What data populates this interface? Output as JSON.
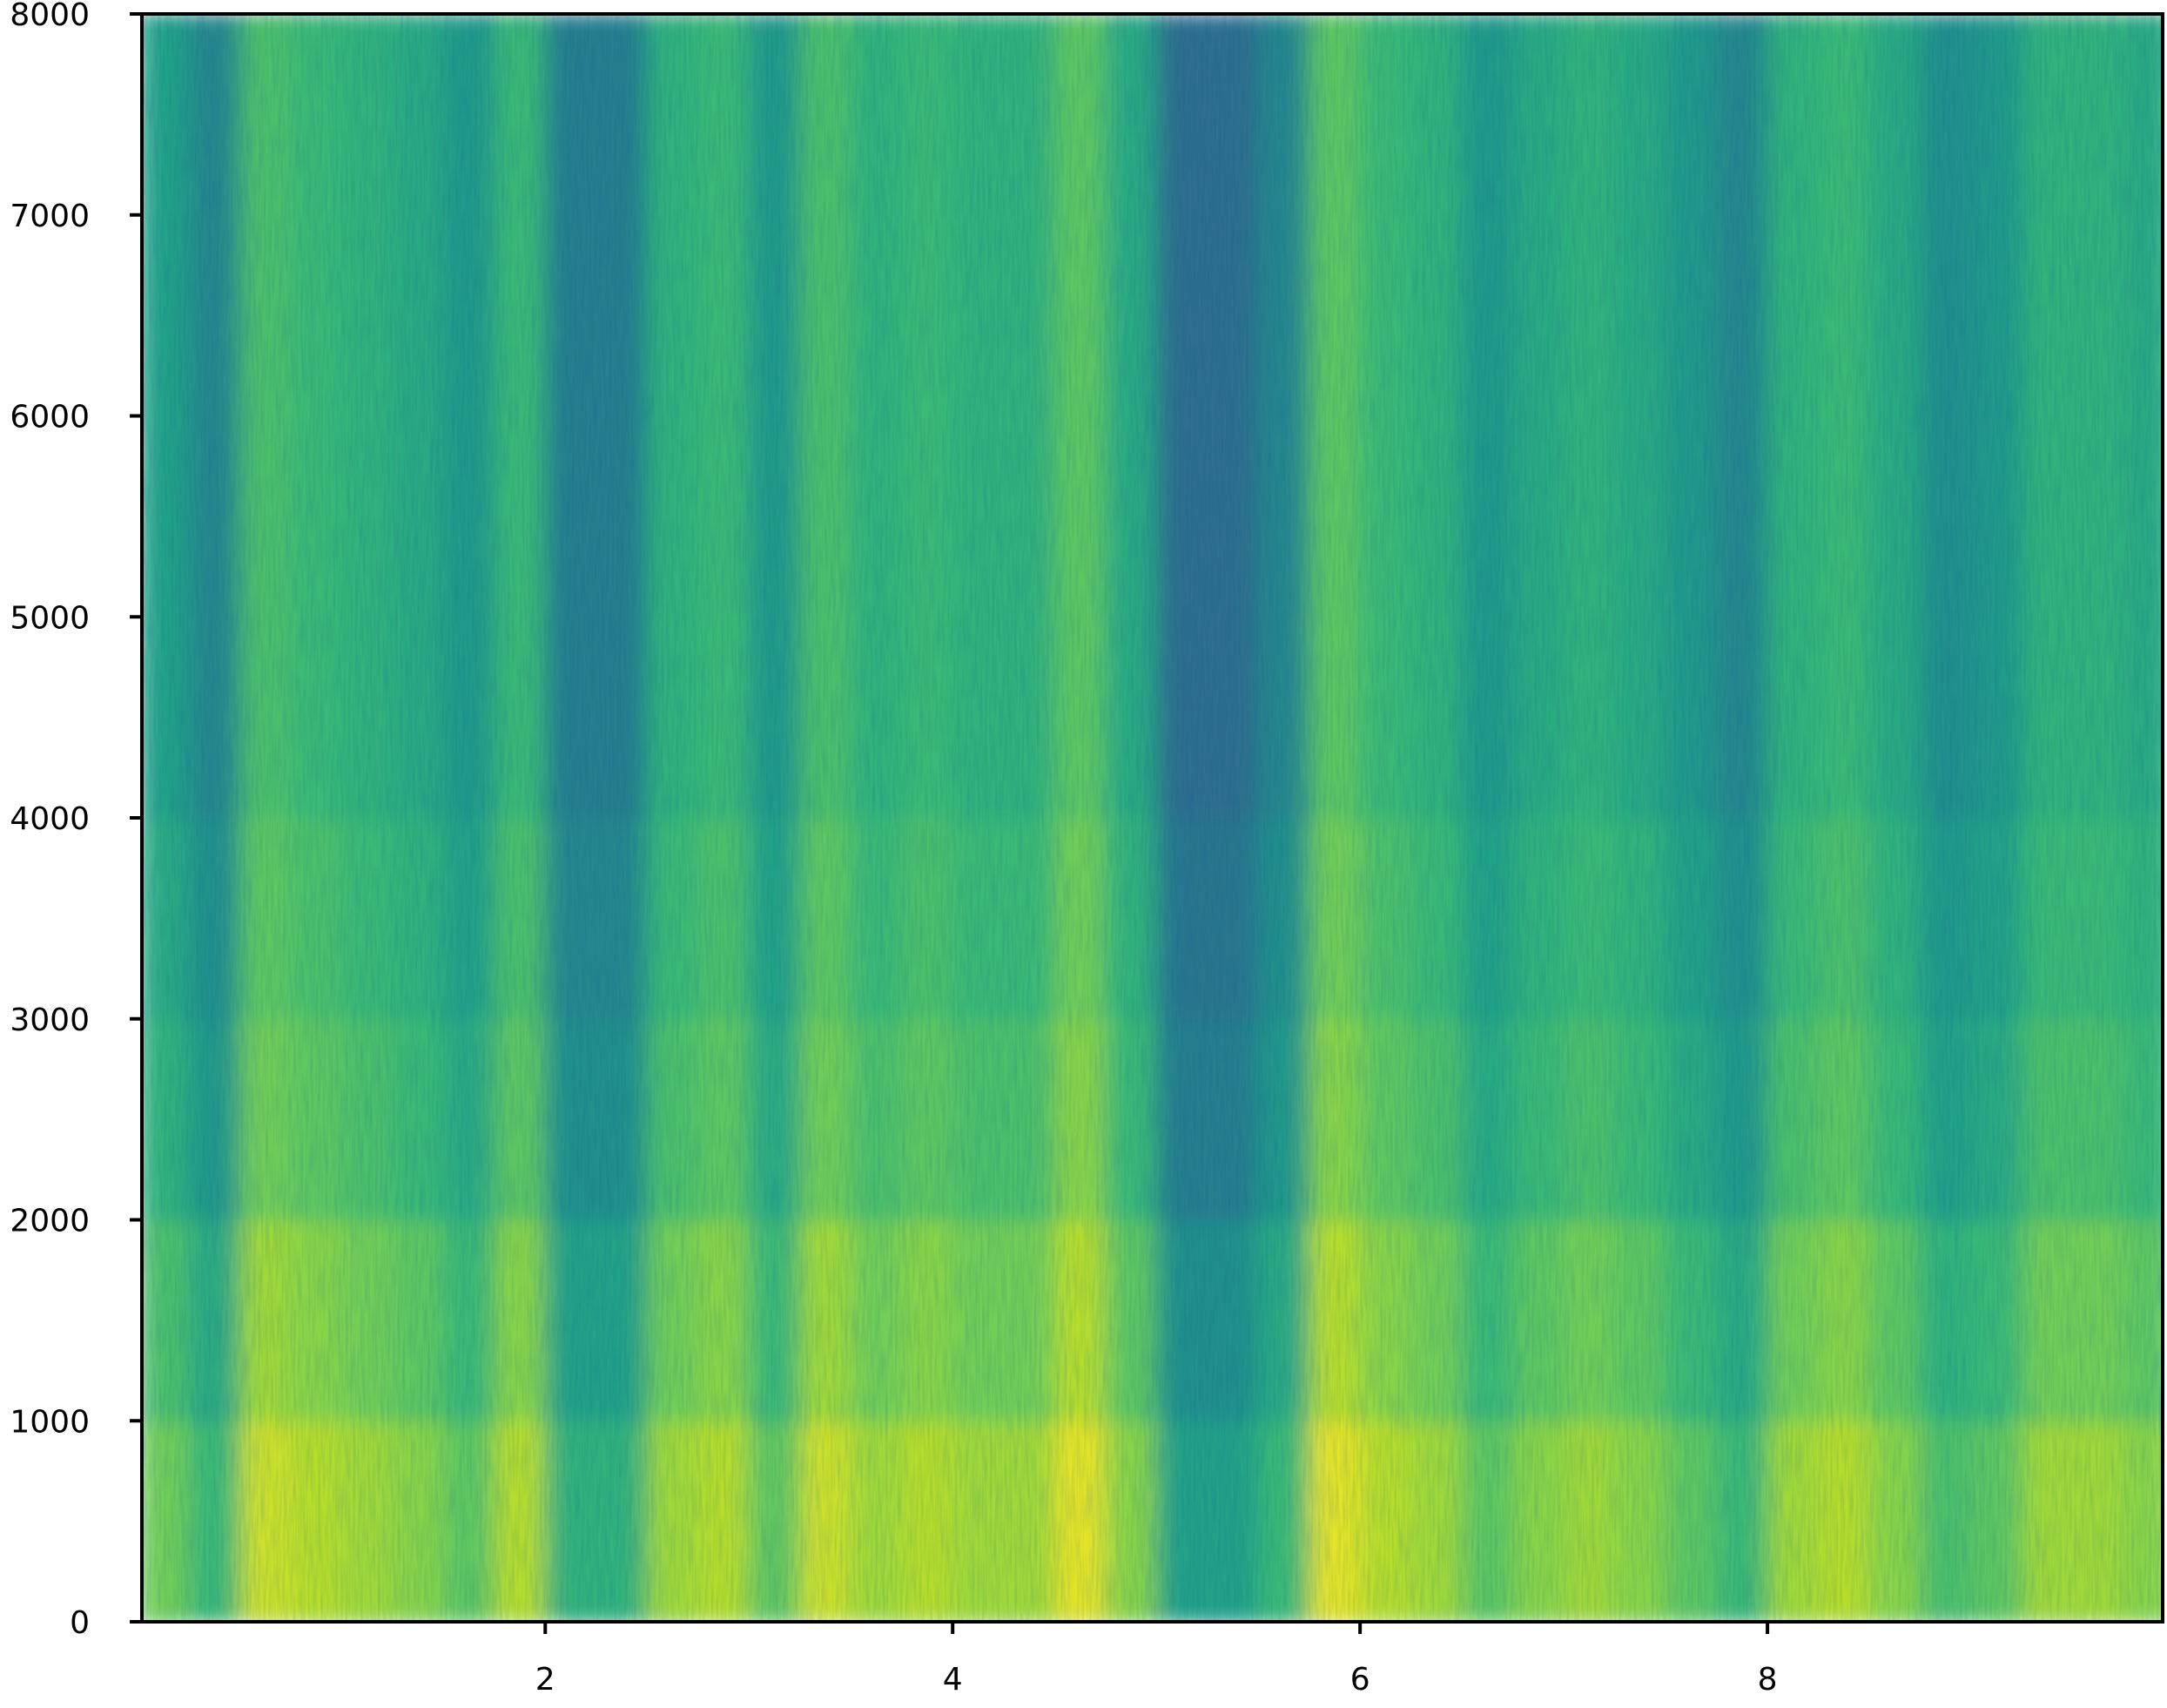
{
  "chart_data": {
    "type": "spectrogram",
    "colormap": "viridis",
    "clim": [
      -0.35,
      1.05
    ],
    "xlim": [
      0.02,
      9.94
    ],
    "xticks": [
      2,
      4,
      6,
      8
    ],
    "ylim": [
      0,
      8000
    ],
    "yticks": [
      0,
      1000,
      2000,
      3000,
      4000,
      5000,
      6000,
      7000,
      8000
    ],
    "xbins": [
      0,
      0.25,
      0.5,
      0.75,
      1,
      1.25,
      1.5,
      1.75,
      2,
      2.25,
      2.5,
      2.75,
      3,
      3.25,
      3.5,
      3.75,
      4,
      4.25,
      4.5,
      4.75,
      5,
      5.25,
      5.5,
      5.75,
      6,
      6.25,
      6.5,
      6.75,
      7,
      7.25,
      7.5,
      7.75,
      8,
      8.25,
      8.5,
      8.75,
      9,
      9.25,
      9.5,
      9.75,
      10
    ],
    "ybins": [
      0,
      1000,
      2000,
      3000,
      4000,
      5000,
      6000,
      7000,
      8000
    ],
    "z": [
      [
        0.75,
        0.6,
        0.95,
        0.9,
        0.85,
        0.8,
        0.7,
        0.9,
        0.55,
        0.55,
        0.85,
        0.9,
        0.7,
        0.95,
        0.85,
        0.9,
        0.85,
        0.85,
        1,
        0.8,
        0.45,
        0.45,
        0.6,
        1,
        0.9,
        0.85,
        0.7,
        0.8,
        0.85,
        0.8,
        0.7,
        0.6,
        0.85,
        0.9,
        0.8,
        0.65,
        0.7,
        0.85,
        0.85,
        0.8
      ],
      [
        0.65,
        0.5,
        0.85,
        0.8,
        0.75,
        0.7,
        0.6,
        0.8,
        0.45,
        0.45,
        0.75,
        0.8,
        0.6,
        0.85,
        0.75,
        0.8,
        0.75,
        0.75,
        0.9,
        0.7,
        0.35,
        0.35,
        0.5,
        0.9,
        0.8,
        0.75,
        0.6,
        0.7,
        0.75,
        0.7,
        0.6,
        0.5,
        0.75,
        0.8,
        0.7,
        0.55,
        0.6,
        0.75,
        0.75,
        0.7
      ],
      [
        0.55,
        0.4,
        0.75,
        0.7,
        0.65,
        0.6,
        0.5,
        0.7,
        0.35,
        0.35,
        0.65,
        0.7,
        0.5,
        0.75,
        0.65,
        0.7,
        0.65,
        0.65,
        0.8,
        0.6,
        0.25,
        0.25,
        0.4,
        0.8,
        0.7,
        0.65,
        0.5,
        0.6,
        0.65,
        0.6,
        0.5,
        0.4,
        0.65,
        0.7,
        0.6,
        0.45,
        0.5,
        0.65,
        0.65,
        0.6
      ],
      [
        0.5,
        0.35,
        0.7,
        0.65,
        0.6,
        0.55,
        0.45,
        0.65,
        0.3,
        0.3,
        0.6,
        0.65,
        0.45,
        0.7,
        0.6,
        0.65,
        0.6,
        0.6,
        0.75,
        0.55,
        0.2,
        0.2,
        0.35,
        0.75,
        0.65,
        0.6,
        0.45,
        0.55,
        0.6,
        0.55,
        0.45,
        0.35,
        0.6,
        0.65,
        0.55,
        0.4,
        0.45,
        0.6,
        0.6,
        0.55
      ],
      [
        0.45,
        0.3,
        0.65,
        0.6,
        0.55,
        0.5,
        0.4,
        0.6,
        0.25,
        0.25,
        0.55,
        0.6,
        0.4,
        0.65,
        0.55,
        0.6,
        0.55,
        0.55,
        0.7,
        0.5,
        0.15,
        0.15,
        0.3,
        0.7,
        0.6,
        0.55,
        0.4,
        0.5,
        0.55,
        0.5,
        0.4,
        0.3,
        0.55,
        0.6,
        0.5,
        0.35,
        0.4,
        0.55,
        0.55,
        0.5
      ],
      [
        0.45,
        0.3,
        0.65,
        0.6,
        0.55,
        0.5,
        0.4,
        0.6,
        0.25,
        0.25,
        0.55,
        0.6,
        0.4,
        0.65,
        0.55,
        0.6,
        0.55,
        0.55,
        0.7,
        0.5,
        0.15,
        0.15,
        0.3,
        0.7,
        0.6,
        0.55,
        0.4,
        0.5,
        0.55,
        0.5,
        0.4,
        0.3,
        0.55,
        0.6,
        0.5,
        0.35,
        0.4,
        0.55,
        0.55,
        0.5
      ],
      [
        0.45,
        0.3,
        0.65,
        0.6,
        0.55,
        0.5,
        0.4,
        0.6,
        0.25,
        0.25,
        0.55,
        0.6,
        0.4,
        0.65,
        0.55,
        0.6,
        0.55,
        0.55,
        0.7,
        0.5,
        0.15,
        0.15,
        0.3,
        0.7,
        0.6,
        0.55,
        0.4,
        0.5,
        0.55,
        0.5,
        0.4,
        0.3,
        0.55,
        0.6,
        0.5,
        0.35,
        0.4,
        0.55,
        0.55,
        0.5
      ],
      [
        0.45,
        0.3,
        0.65,
        0.6,
        0.55,
        0.5,
        0.4,
        0.6,
        0.25,
        0.25,
        0.55,
        0.6,
        0.4,
        0.65,
        0.55,
        0.6,
        0.55,
        0.55,
        0.7,
        0.5,
        0.15,
        0.15,
        0.3,
        0.7,
        0.6,
        0.55,
        0.4,
        0.5,
        0.55,
        0.5,
        0.4,
        0.3,
        0.55,
        0.6,
        0.5,
        0.35,
        0.4,
        0.55,
        0.55,
        0.5
      ]
    ]
  }
}
